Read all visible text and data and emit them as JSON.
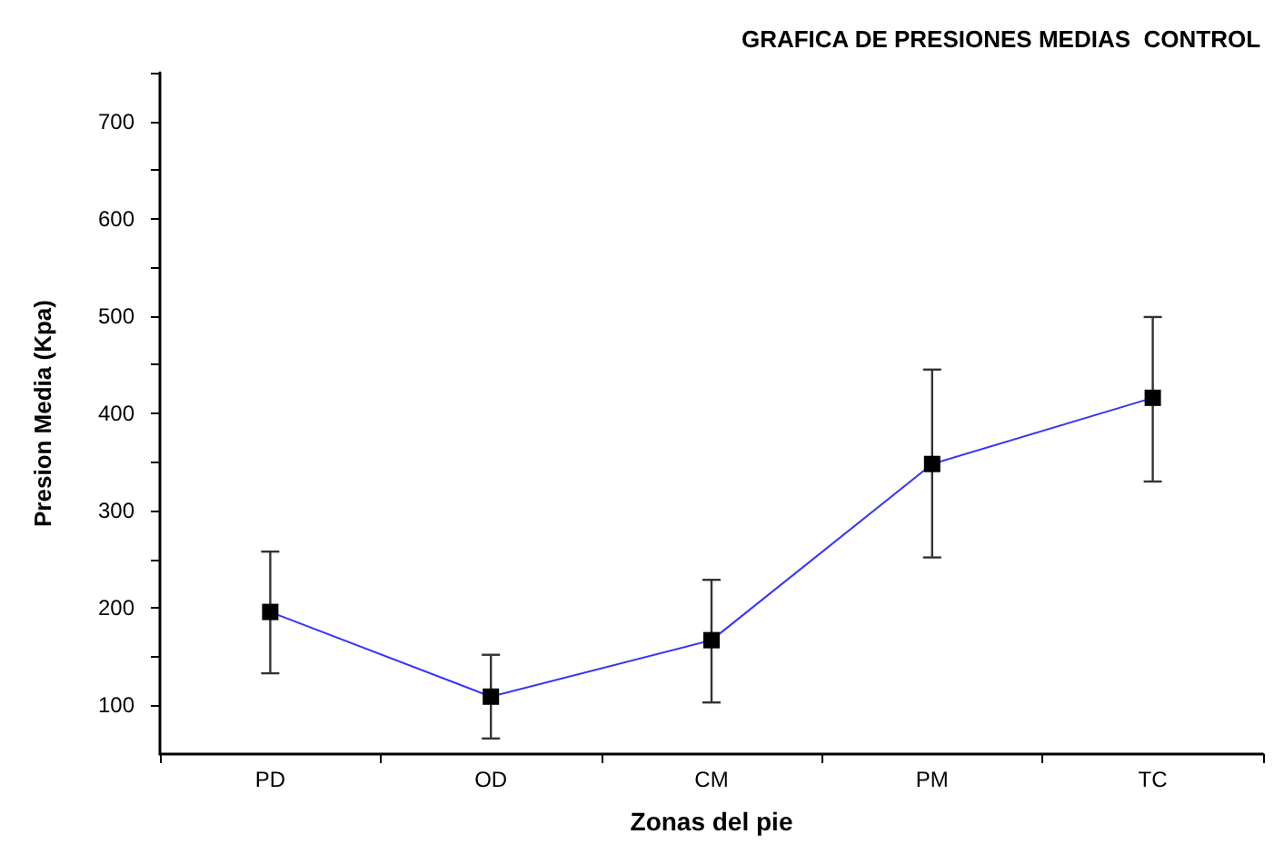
{
  "chart_data": {
    "type": "line",
    "title": "GRAFICA DE PRESIONES MEDIAS  CONTROL",
    "xlabel": "Zonas del pie",
    "ylabel": "Presion Media (Kpa)",
    "categories": [
      "PD",
      "OD",
      "CM",
      "PM",
      "TC"
    ],
    "series": [
      {
        "color": "#3333ff",
        "values": [
          196,
          109,
          167,
          348,
          416
        ],
        "errors": [
          [
            133,
            258
          ],
          [
            66,
            152
          ],
          [
            103,
            229
          ],
          [
            252,
            445
          ],
          [
            330,
            499
          ]
        ]
      }
    ],
    "ylim": [
      50,
      750
    ],
    "yticks": [
      100,
      {
        "value": 150,
        "label": null
      },
      200,
      {
        "value": 250,
        "label": null
      },
      300,
      {
        "value": 350,
        "label": null
      },
      400,
      {
        "value": 450,
        "label": null
      },
      500,
      {
        "value": 550,
        "label": null
      },
      600,
      {
        "value": 650,
        "label": null
      },
      700,
      {
        "value": 750,
        "label": null
      }
    ],
    "marker": "square",
    "line_style": "solid"
  }
}
